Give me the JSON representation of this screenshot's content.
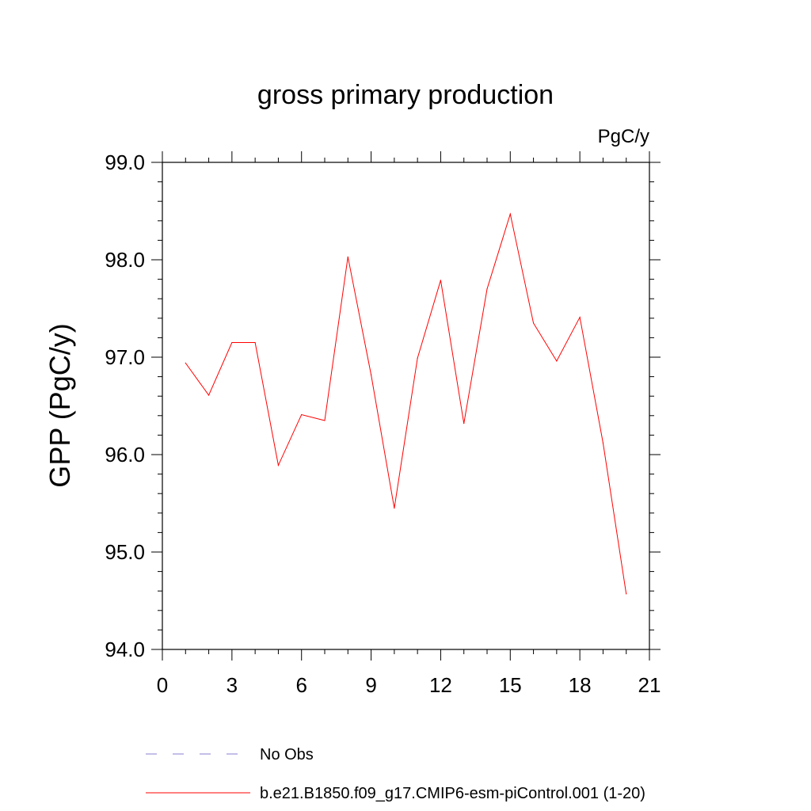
{
  "chart_data": {
    "type": "line",
    "title": "gross primary production",
    "units": "PgC/y",
    "xlabel": "",
    "ylabel": "GPP  (PgC/y)",
    "xlim": [
      0,
      21
    ],
    "ylim": [
      94.0,
      99.0
    ],
    "x_ticks": [
      0,
      3,
      6,
      9,
      12,
      15,
      18,
      21
    ],
    "y_ticks": [
      "94.0",
      "95.0",
      "96.0",
      "97.0",
      "98.0",
      "99.0"
    ],
    "x_minor_step": 1,
    "y_minor_step": 0.2,
    "grid": false,
    "legend": {
      "placement": "bottom",
      "entries": [
        {
          "label": "No Obs",
          "color": "#8a7fd0",
          "style": "dashed"
        },
        {
          "label": "b.e21.B1850.f09_g17.CMIP6-esm-piControl.001 (1-20)",
          "color": "#ff0000",
          "style": "solid"
        }
      ]
    },
    "series": [
      {
        "color": "#ff0000",
        "x": [
          1,
          2,
          3,
          4,
          5,
          6,
          7,
          8,
          9,
          10,
          11,
          12,
          13,
          14,
          15,
          16,
          17,
          18,
          19,
          20
        ],
        "values": [
          96.94,
          96.61,
          97.15,
          97.15,
          95.89,
          96.41,
          96.35,
          98.03,
          96.82,
          95.45,
          96.99,
          97.79,
          96.32,
          97.7,
          98.47,
          97.35,
          96.96,
          97.41,
          96.12,
          94.57
        ]
      }
    ]
  }
}
